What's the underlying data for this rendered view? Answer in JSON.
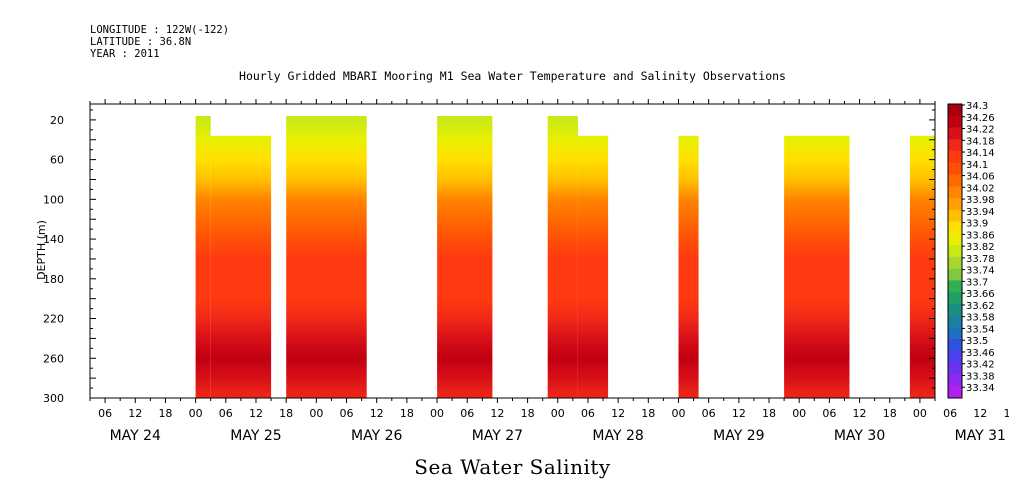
{
  "header": {
    "longitude": "LONGITUDE : 122W(-122)",
    "latitude": "LATITUDE : 36.8N",
    "year": "YEAR : 2011"
  },
  "chart_data": {
    "type": "heatmap",
    "title": "Hourly Gridded MBARI Mooring M1 Sea Water Temperature and Salinity Observations",
    "bottom_title": "Sea Water Salinity",
    "xlabel": "",
    "ylabel": "DEPTH (m)",
    "x_unit": "hours since 2011-05-24 00:00",
    "xlim": [
      3,
      171
    ],
    "ylim": [
      300,
      4
    ],
    "x_hour_ticks": [
      "06",
      "12",
      "18",
      "00",
      "06",
      "12",
      "18",
      "00",
      "06",
      "12",
      "18",
      "00",
      "06",
      "12",
      "18",
      "00",
      "06",
      "12",
      "18",
      "00",
      "06",
      "12",
      "18",
      "00",
      "06",
      "12",
      "18",
      "00",
      "06",
      "12",
      "18",
      "00"
    ],
    "x_day_labels": [
      "MAY 24",
      "MAY 25",
      "MAY 26",
      "MAY 27",
      "MAY 28",
      "MAY 29",
      "MAY 30",
      "MAY 31"
    ],
    "y_ticks": [
      20,
      60,
      100,
      140,
      180,
      220,
      260,
      300
    ],
    "colorbar_levels": [
      "34.3",
      "34.26",
      "34.22",
      "34.18",
      "34.14",
      "34.1",
      "34.06",
      "34.02",
      "33.98",
      "33.94",
      "33.9",
      "33.86",
      "33.82",
      "33.78",
      "33.74",
      "33.7",
      "33.66",
      "33.62",
      "33.58",
      "33.54",
      "33.5",
      "33.46",
      "33.42",
      "33.38",
      "33.34"
    ],
    "colorbar_colors": [
      "#a8000e",
      "#c00010",
      "#d81018",
      "#f02818",
      "#ff3a10",
      "#ff5008",
      "#ff6a00",
      "#ff8400",
      "#ffa000",
      "#ffc000",
      "#ffe000",
      "#e8f000",
      "#c8e818",
      "#a8d830",
      "#80c840",
      "#30b050",
      "#20a068",
      "#189080",
      "#1c80a0",
      "#2070c0",
      "#3050e0",
      "#5040f0",
      "#7030f0",
      "#9028f0",
      "#b020f0"
    ],
    "depth_profile": [
      {
        "depth": 20,
        "value": 33.82
      },
      {
        "depth": 40,
        "value": 33.86
      },
      {
        "depth": 60,
        "value": 33.9
      },
      {
        "depth": 80,
        "value": 33.94
      },
      {
        "depth": 100,
        "value": 34.02
      },
      {
        "depth": 120,
        "value": 34.06
      },
      {
        "depth": 140,
        "value": 34.1
      },
      {
        "depth": 160,
        "value": 34.14
      },
      {
        "depth": 180,
        "value": 34.14
      },
      {
        "depth": 200,
        "value": 34.14
      },
      {
        "depth": 220,
        "value": 34.18
      },
      {
        "depth": 240,
        "value": 34.22
      },
      {
        "depth": 260,
        "value": 34.26
      },
      {
        "depth": 280,
        "value": 34.22
      },
      {
        "depth": 300,
        "value": 34.18
      }
    ],
    "data_blocks": [
      {
        "start_hour": 24,
        "end_hour": 27,
        "top_depth": 20
      },
      {
        "start_hour": 27,
        "end_hour": 39,
        "top_depth": 40
      },
      {
        "start_hour": 42,
        "end_hour": 58,
        "top_depth": 20
      },
      {
        "start_hour": 72,
        "end_hour": 83,
        "top_depth": 20
      },
      {
        "start_hour": 94,
        "end_hour": 100,
        "top_depth": 20
      },
      {
        "start_hour": 100,
        "end_hour": 106,
        "top_depth": 40
      },
      {
        "start_hour": 120,
        "end_hour": 124,
        "top_depth": 40
      },
      {
        "start_hour": 141,
        "end_hour": 154,
        "top_depth": 40
      },
      {
        "start_hour": 166,
        "end_hour": 173,
        "top_depth": 40
      }
    ]
  }
}
